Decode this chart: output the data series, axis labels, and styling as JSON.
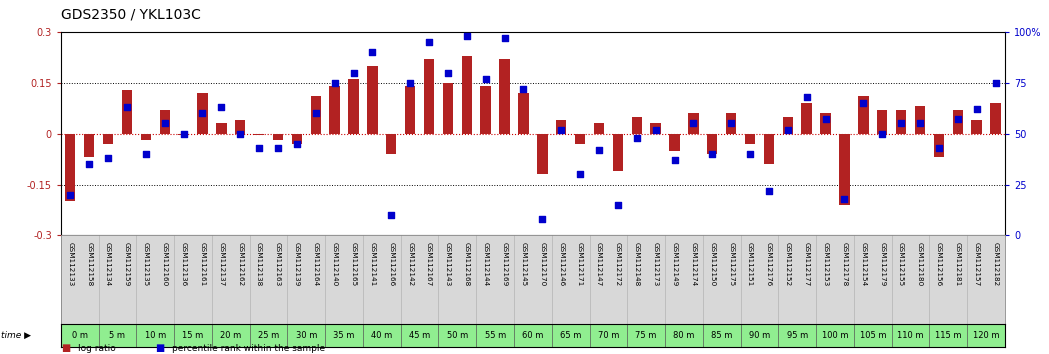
{
  "title": "GDS2350 / YKL103C",
  "gsm_labels": [
    "GSM112133",
    "GSM112158",
    "GSM112134",
    "GSM112159",
    "GSM112135",
    "GSM112160",
    "GSM112136",
    "GSM112161",
    "GSM112137",
    "GSM112162",
    "GSM112138",
    "GSM112163",
    "GSM112139",
    "GSM112164",
    "GSM112140",
    "GSM112165",
    "GSM112141",
    "GSM112166",
    "GSM112142",
    "GSM112167",
    "GSM112143",
    "GSM112168",
    "GSM112144",
    "GSM112169",
    "GSM112145",
    "GSM112170",
    "GSM112146",
    "GSM112171",
    "GSM112147",
    "GSM112172",
    "GSM112148",
    "GSM112173",
    "GSM112149",
    "GSM112174",
    "GSM112150",
    "GSM112175",
    "GSM112151",
    "GSM112176",
    "GSM112152",
    "GSM112177",
    "GSM112153",
    "GSM112178",
    "GSM112154",
    "GSM112179",
    "GSM112155",
    "GSM112180",
    "GSM112156",
    "GSM112181",
    "GSM112157",
    "GSM112182"
  ],
  "time_labels": [
    "0 m",
    "5 m",
    "10 m",
    "15 m",
    "20 m",
    "25 m",
    "30 m",
    "35 m",
    "40 m",
    "45 m",
    "50 m",
    "55 m",
    "60 m",
    "65 m",
    "70 m",
    "75 m",
    "80 m",
    "85 m",
    "90 m",
    "95 m",
    "100 m",
    "105 m",
    "110 m",
    "115 m",
    "120 m"
  ],
  "log_ratio": [
    -0.2,
    -0.07,
    -0.03,
    0.13,
    -0.02,
    0.07,
    -0.005,
    0.12,
    0.03,
    0.04,
    -0.005,
    -0.02,
    -0.03,
    0.11,
    0.14,
    0.16,
    0.2,
    -0.06,
    0.14,
    0.22,
    0.15,
    0.23,
    0.14,
    0.22,
    0.12,
    -0.12,
    0.04,
    -0.03,
    0.03,
    -0.11,
    0.05,
    0.03,
    -0.05,
    0.06,
    -0.06,
    0.06,
    -0.03,
    -0.09,
    0.05,
    0.09,
    0.06,
    -0.21,
    0.11,
    0.07,
    0.07,
    0.08,
    -0.07,
    0.07,
    0.04,
    0.09
  ],
  "percentile": [
    20,
    35,
    38,
    63,
    40,
    55,
    50,
    60,
    63,
    50,
    43,
    43,
    45,
    60,
    75,
    80,
    90,
    10,
    75,
    95,
    80,
    98,
    77,
    97,
    72,
    8,
    52,
    30,
    42,
    15,
    48,
    52,
    37,
    55,
    40,
    55,
    40,
    22,
    52,
    68,
    57,
    18,
    65,
    50,
    55,
    55,
    43,
    57,
    62,
    75
  ],
  "bar_color": "#b22222",
  "scatter_color": "#0000cc",
  "bg_color": "#ffffff",
  "plot_bg": "#ffffff",
  "ylim_left": [
    -0.3,
    0.3
  ],
  "ylim_right": [
    0,
    100
  ],
  "yticks_left": [
    -0.3,
    -0.15,
    0.0,
    0.15,
    0.3
  ],
  "ytick_labels_left": [
    "-0.3",
    "-0.15",
    "0",
    "0.15",
    "0.3"
  ],
  "yticks_right": [
    0,
    25,
    50,
    75,
    100
  ],
  "ytick_labels_right": [
    "0",
    "25",
    "50",
    "75",
    "100%"
  ],
  "zero_line_color": "#cc0000",
  "dotted_line_color": "#000000",
  "title_fontsize": 10,
  "tick_fontsize": 7,
  "time_bg_color": "#90ee90",
  "gsm_bg_color": "#d8d8d8",
  "legend_bar_color": "#b22222",
  "legend_scatter_color": "#0000cc"
}
